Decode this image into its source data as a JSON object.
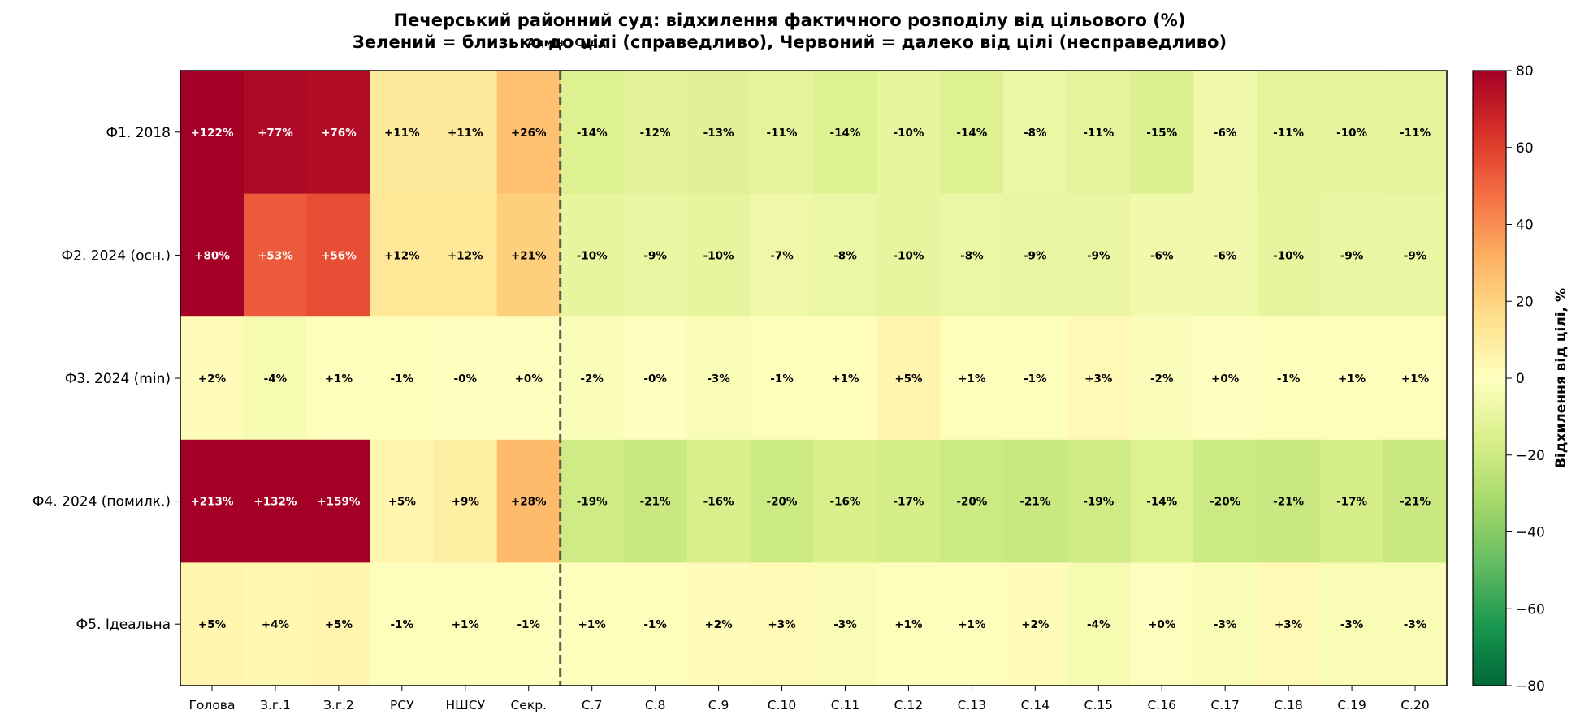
{
  "chart_data": {
    "type": "heatmap",
    "title": "Печерський районний суд: відхилення фактичного розподілу від цільового (%)",
    "subtitle": "Зелений = близько до цілі (справедливо), Червоний = далеко від цілі (несправедливо)",
    "overlay_text": "Адмін   Судді",
    "columns": [
      "Голова",
      "З.г.1",
      "З.г.2",
      "РСУ",
      "НШСУ",
      "Секр.",
      "С.7",
      "С.8",
      "С.9",
      "С.10",
      "С.11",
      "С.12",
      "С.13",
      "С.14",
      "С.15",
      "С.16",
      "С.17",
      "С.18",
      "С.19",
      "С.20"
    ],
    "rows": [
      "Ф1. 2018",
      "Ф2. 2024 (осн.)",
      "Ф3. 2024 (min)",
      "Ф4. 2024 (помилк.)",
      "Ф5. Ідеальна"
    ],
    "values": [
      [
        122,
        77,
        76,
        11,
        11,
        26,
        -14,
        -12,
        -13,
        -11,
        -14,
        -10,
        -14,
        -8,
        -11,
        -15,
        -6,
        -11,
        -10,
        -11
      ],
      [
        80,
        53,
        56,
        12,
        12,
        21,
        -10,
        -9,
        -10,
        -7,
        -8,
        -10,
        -8,
        -9,
        -9,
        -6,
        -6,
        -10,
        -9,
        -9
      ],
      [
        2,
        -4,
        1,
        -1,
        -0.3,
        0.3,
        -2,
        -0.3,
        -3,
        -1,
        1,
        5,
        1,
        -1,
        3,
        -2,
        0.3,
        -1,
        1,
        1
      ],
      [
        213,
        132,
        159,
        5,
        9,
        28,
        -19,
        -21,
        -16,
        -20,
        -16,
        -17,
        -20,
        -21,
        -19,
        -14,
        -20,
        -21,
        -17,
        -21
      ],
      [
        5,
        4,
        5,
        -1,
        1,
        -1,
        1,
        -1,
        2,
        3,
        -3,
        1,
        1,
        2,
        -4,
        0.3,
        -3,
        3,
        -3,
        -3
      ]
    ],
    "cell_labels": [
      [
        "+122%",
        "+77%",
        "+76%",
        "+11%",
        "+11%",
        "+26%",
        "-14%",
        "-12%",
        "-13%",
        "-11%",
        "-14%",
        "-10%",
        "-14%",
        "-8%",
        "-11%",
        "-15%",
        "-6%",
        "-11%",
        "-10%",
        "-11%"
      ],
      [
        "+80%",
        "+53%",
        "+56%",
        "+12%",
        "+12%",
        "+21%",
        "-10%",
        "-9%",
        "-10%",
        "-7%",
        "-8%",
        "-10%",
        "-8%",
        "-9%",
        "-9%",
        "-6%",
        "-6%",
        "-10%",
        "-9%",
        "-9%"
      ],
      [
        "+2%",
        "-4%",
        "+1%",
        "-1%",
        "-0%",
        "+0%",
        "-2%",
        "-0%",
        "-3%",
        "-1%",
        "+1%",
        "+5%",
        "+1%",
        "-1%",
        "+3%",
        "-2%",
        "+0%",
        "-1%",
        "+1%",
        "+1%"
      ],
      [
        "+213%",
        "+132%",
        "+159%",
        "+5%",
        "+9%",
        "+28%",
        "-19%",
        "-21%",
        "-16%",
        "-20%",
        "-16%",
        "-17%",
        "-20%",
        "-21%",
        "-19%",
        "-14%",
        "-20%",
        "-21%",
        "-17%",
        "-21%"
      ],
      [
        "+5%",
        "+4%",
        "+5%",
        "-1%",
        "+1%",
        "-1%",
        "+1%",
        "-1%",
        "+2%",
        "+3%",
        "-3%",
        "+1%",
        "+1%",
        "+2%",
        "-4%",
        "+0%",
        "-3%",
        "+3%",
        "-3%",
        "-3%"
      ]
    ],
    "color_scale": "RdYlGn_r",
    "vmin": -80,
    "vmax": 80,
    "divider_after_column": "Секр.",
    "colorbar": {
      "label": "Відхилення від цілі, %",
      "ticks": [
        80,
        60,
        40,
        20,
        0,
        -20,
        -40,
        -60,
        -80
      ],
      "tick_labels": [
        "80",
        "60",
        "40",
        "20",
        "0",
        "−20",
        "−40",
        "−60",
        "−80"
      ]
    }
  }
}
